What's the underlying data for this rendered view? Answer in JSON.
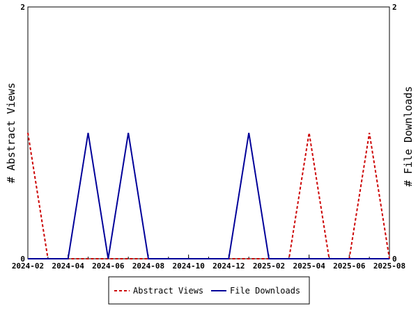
{
  "chart_data": {
    "type": "line",
    "x": [
      "2024-02",
      "2024-03",
      "2024-04",
      "2024-05",
      "2024-06",
      "2024-07",
      "2024-08",
      "2024-09",
      "2024-10",
      "2024-11",
      "2024-12",
      "2025-01",
      "2025-02",
      "2025-03",
      "2025-04",
      "2025-05",
      "2025-06",
      "2025-07",
      "2025-08"
    ],
    "series": [
      {
        "name": "Abstract Views",
        "axis": "left",
        "color": "#cc0000",
        "dash": "dashed",
        "values": [
          1,
          0,
          0,
          0,
          0,
          0,
          0,
          0,
          0,
          0,
          0,
          0,
          0,
          0,
          1,
          0,
          0,
          1,
          0
        ]
      },
      {
        "name": "File Downloads",
        "axis": "right",
        "color": "#000099",
        "dash": "solid",
        "values": [
          0,
          0,
          0,
          1,
          0,
          1,
          0,
          0,
          0,
          0,
          0,
          1,
          0,
          0,
          0,
          0,
          0,
          0,
          0
        ]
      }
    ],
    "xticks": [
      "2024-02",
      "2024-04",
      "2024-06",
      "2024-08",
      "2024-10",
      "2024-12",
      "2025-02",
      "2025-04",
      "2025-06",
      "2025-08"
    ],
    "ylabel_left": "# Abstract Views",
    "ylabel_right": "# File Downloads",
    "ylim_left": [
      0,
      2
    ],
    "ylim_right": [
      0,
      2
    ],
    "yticks_left": [
      "0",
      "2"
    ],
    "yticks_right": [
      "0",
      "2"
    ],
    "grid": false,
    "legend_position": "bottom"
  }
}
